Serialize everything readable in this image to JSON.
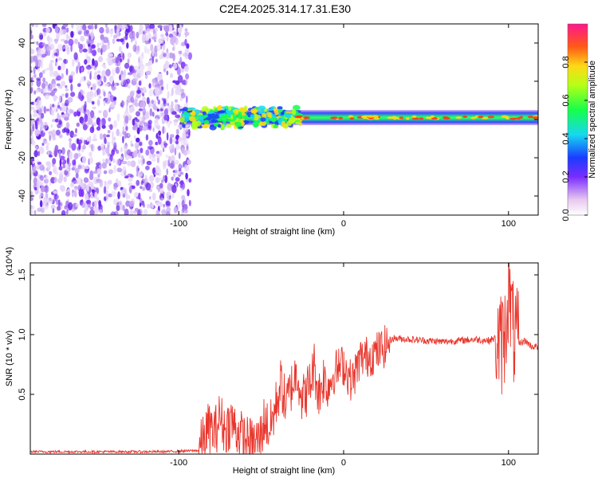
{
  "title": "C2E4.2025.314.17.31.E30",
  "chart_data": [
    {
      "type": "heatmap",
      "title": "C2E4.2025.314.17.31.E30",
      "xlabel": "Height of straight line (km)",
      "ylabel": "Frequency (Hz)",
      "xlim": [
        -190,
        118
      ],
      "ylim": [
        -50,
        50
      ],
      "xticks": [
        -100,
        0,
        100
      ],
      "yticks": [
        -40,
        -20,
        0,
        20,
        40
      ],
      "colorbar": {
        "label": "Normalized spectral amplitude",
        "range": [
          0,
          1
        ],
        "ticks": [
          0.0,
          0.2,
          0.4,
          0.6,
          0.8
        ],
        "tick_labels": [
          "0.0",
          "0.2",
          "0.4",
          "0.6",
          "0.8"
        ]
      },
      "regions": [
        {
          "name": "noise",
          "x_range": [
            -190,
            -95
          ],
          "y_range": [
            -50,
            50
          ],
          "amplitude": [
            0.05,
            0.2
          ]
        },
        {
          "name": "signal-band",
          "x_range": [
            -98,
            118
          ],
          "center_hz": 1,
          "halfwidth_hz": 4,
          "amplitude": [
            0.3,
            0.9
          ]
        }
      ]
    },
    {
      "type": "line",
      "xlabel": "Height of straight line (km)",
      "ylabel": "SNR (10 * v/v)",
      "y_multiplier": "(x10^4)",
      "xlim": [
        -190,
        118
      ],
      "ylim": [
        0,
        1.6
      ],
      "xticks": [
        -100,
        0,
        100
      ],
      "yticks": [
        0.5,
        1.0,
        1.5
      ],
      "ytick_labels": [
        "0.5",
        "1.0",
        "1.5"
      ],
      "series": [
        {
          "name": "SNR",
          "color": "#e8362c",
          "x": [
            -190,
            -150,
            -110,
            -88,
            -85,
            -82,
            -78,
            -75,
            -72,
            -68,
            -65,
            -60,
            -55,
            -50,
            -48,
            -45,
            -42,
            -38,
            -35,
            -32,
            -28,
            -25,
            -20,
            -18,
            -15,
            -12,
            -10,
            -5,
            0,
            5,
            8,
            10,
            15,
            20,
            25,
            28,
            30,
            40,
            50,
            60,
            70,
            80,
            88,
            92,
            95,
            98,
            100,
            103,
            106,
            110,
            114,
            118
          ],
          "y": [
            0.02,
            0.02,
            0.02,
            0.03,
            0.12,
            0.22,
            0.18,
            0.32,
            0.2,
            0.28,
            0.2,
            0.12,
            0.08,
            0.15,
            0.3,
            0.2,
            0.35,
            0.6,
            0.4,
            0.55,
            0.7,
            0.45,
            0.6,
            0.75,
            0.5,
            0.65,
            0.55,
            0.7,
            0.75,
            0.6,
            0.72,
            0.8,
            0.82,
            0.85,
            0.9,
            0.95,
            0.97,
            0.96,
            0.95,
            0.94,
            0.95,
            0.96,
            0.95,
            0.97,
            0.9,
            1.0,
            1.4,
            1.0,
            0.92,
            0.95,
            0.9,
            0.9
          ]
        }
      ]
    }
  ]
}
